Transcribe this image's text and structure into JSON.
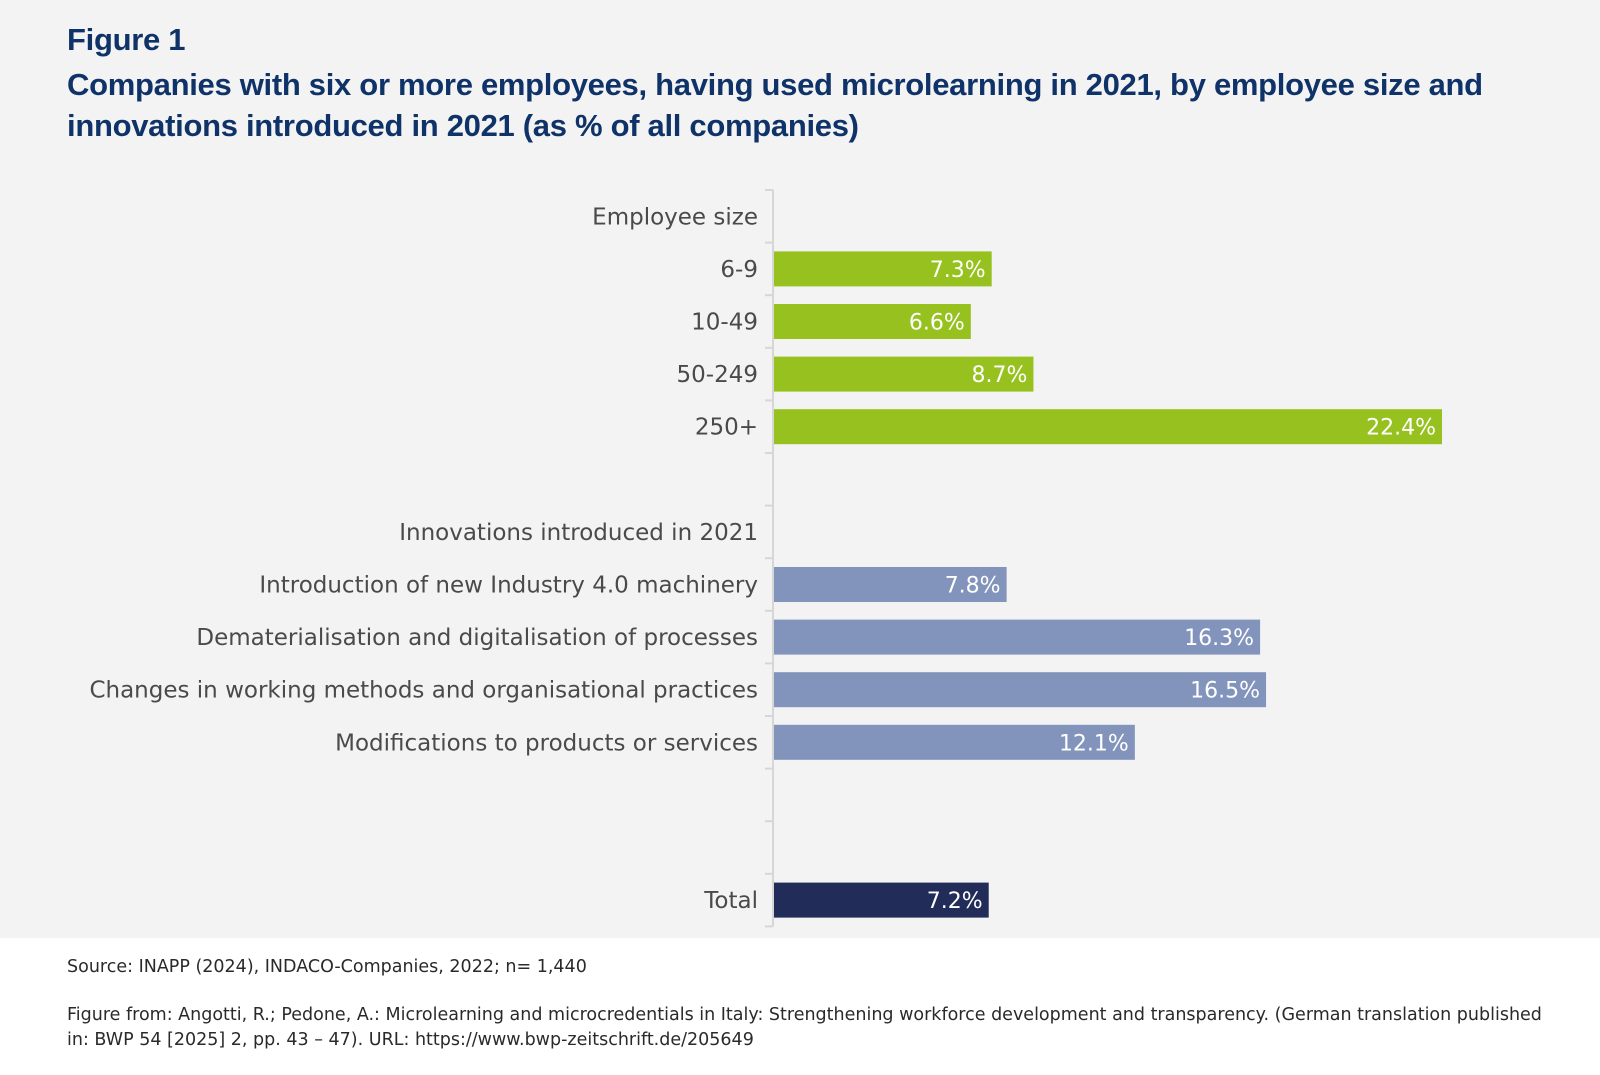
{
  "figure": {
    "label": "Figure 1",
    "title": "Companies with six or more employees, having used microlearning in 2021, by employee size and innovations introduced in 2021 (as % of all companies)"
  },
  "chart_data": {
    "type": "bar",
    "orientation": "horizontal",
    "title": "Companies with six or more employees, having used microlearning in 2021, by employee size and innovations introduced in 2021 (as % of all companies)",
    "xlabel": "",
    "ylabel": "",
    "xlim": [
      0,
      24
    ],
    "grid": false,
    "value_unit": "%",
    "groups": [
      {
        "name": "Employee size",
        "color": "#96c11f",
        "categories": [
          "6-9",
          "10-49",
          "50-249",
          "250+"
        ],
        "values": [
          7.3,
          6.6,
          8.7,
          22.4
        ],
        "labels": [
          "7.3%",
          "6.6%",
          "8.7%",
          "22.4%"
        ]
      },
      {
        "name": "Innovations introduced in 2021",
        "color": "#8294bb",
        "categories": [
          "Introduction of new Industry 4.0 machinery",
          "Dematerialisation and digitalisation of processes",
          "Changes in working methods and organisational practices",
          "Modifications to products or services"
        ],
        "values": [
          7.8,
          16.3,
          16.5,
          12.1
        ],
        "labels": [
          "7.8%",
          "16.3%",
          "16.5%",
          "12.1%"
        ]
      },
      {
        "name": "",
        "color": "#222c58",
        "categories": [
          "Total"
        ],
        "values": [
          7.2
        ],
        "labels": [
          "7.2%"
        ]
      }
    ]
  },
  "footer": {
    "source": "Source: INAPP (2024), INDACO-Companies, 2022; n= 1,440",
    "citation": "Figure from: Angotti, R.; Pedone, A.: Microlearning and microcredentials in Italy: Strengthening workforce development and transparency. (German translation published in: BWP 54 [2025] 2, pp. 43 – 47). URL: https://www.bwp-zeitschrift.de/205649"
  }
}
